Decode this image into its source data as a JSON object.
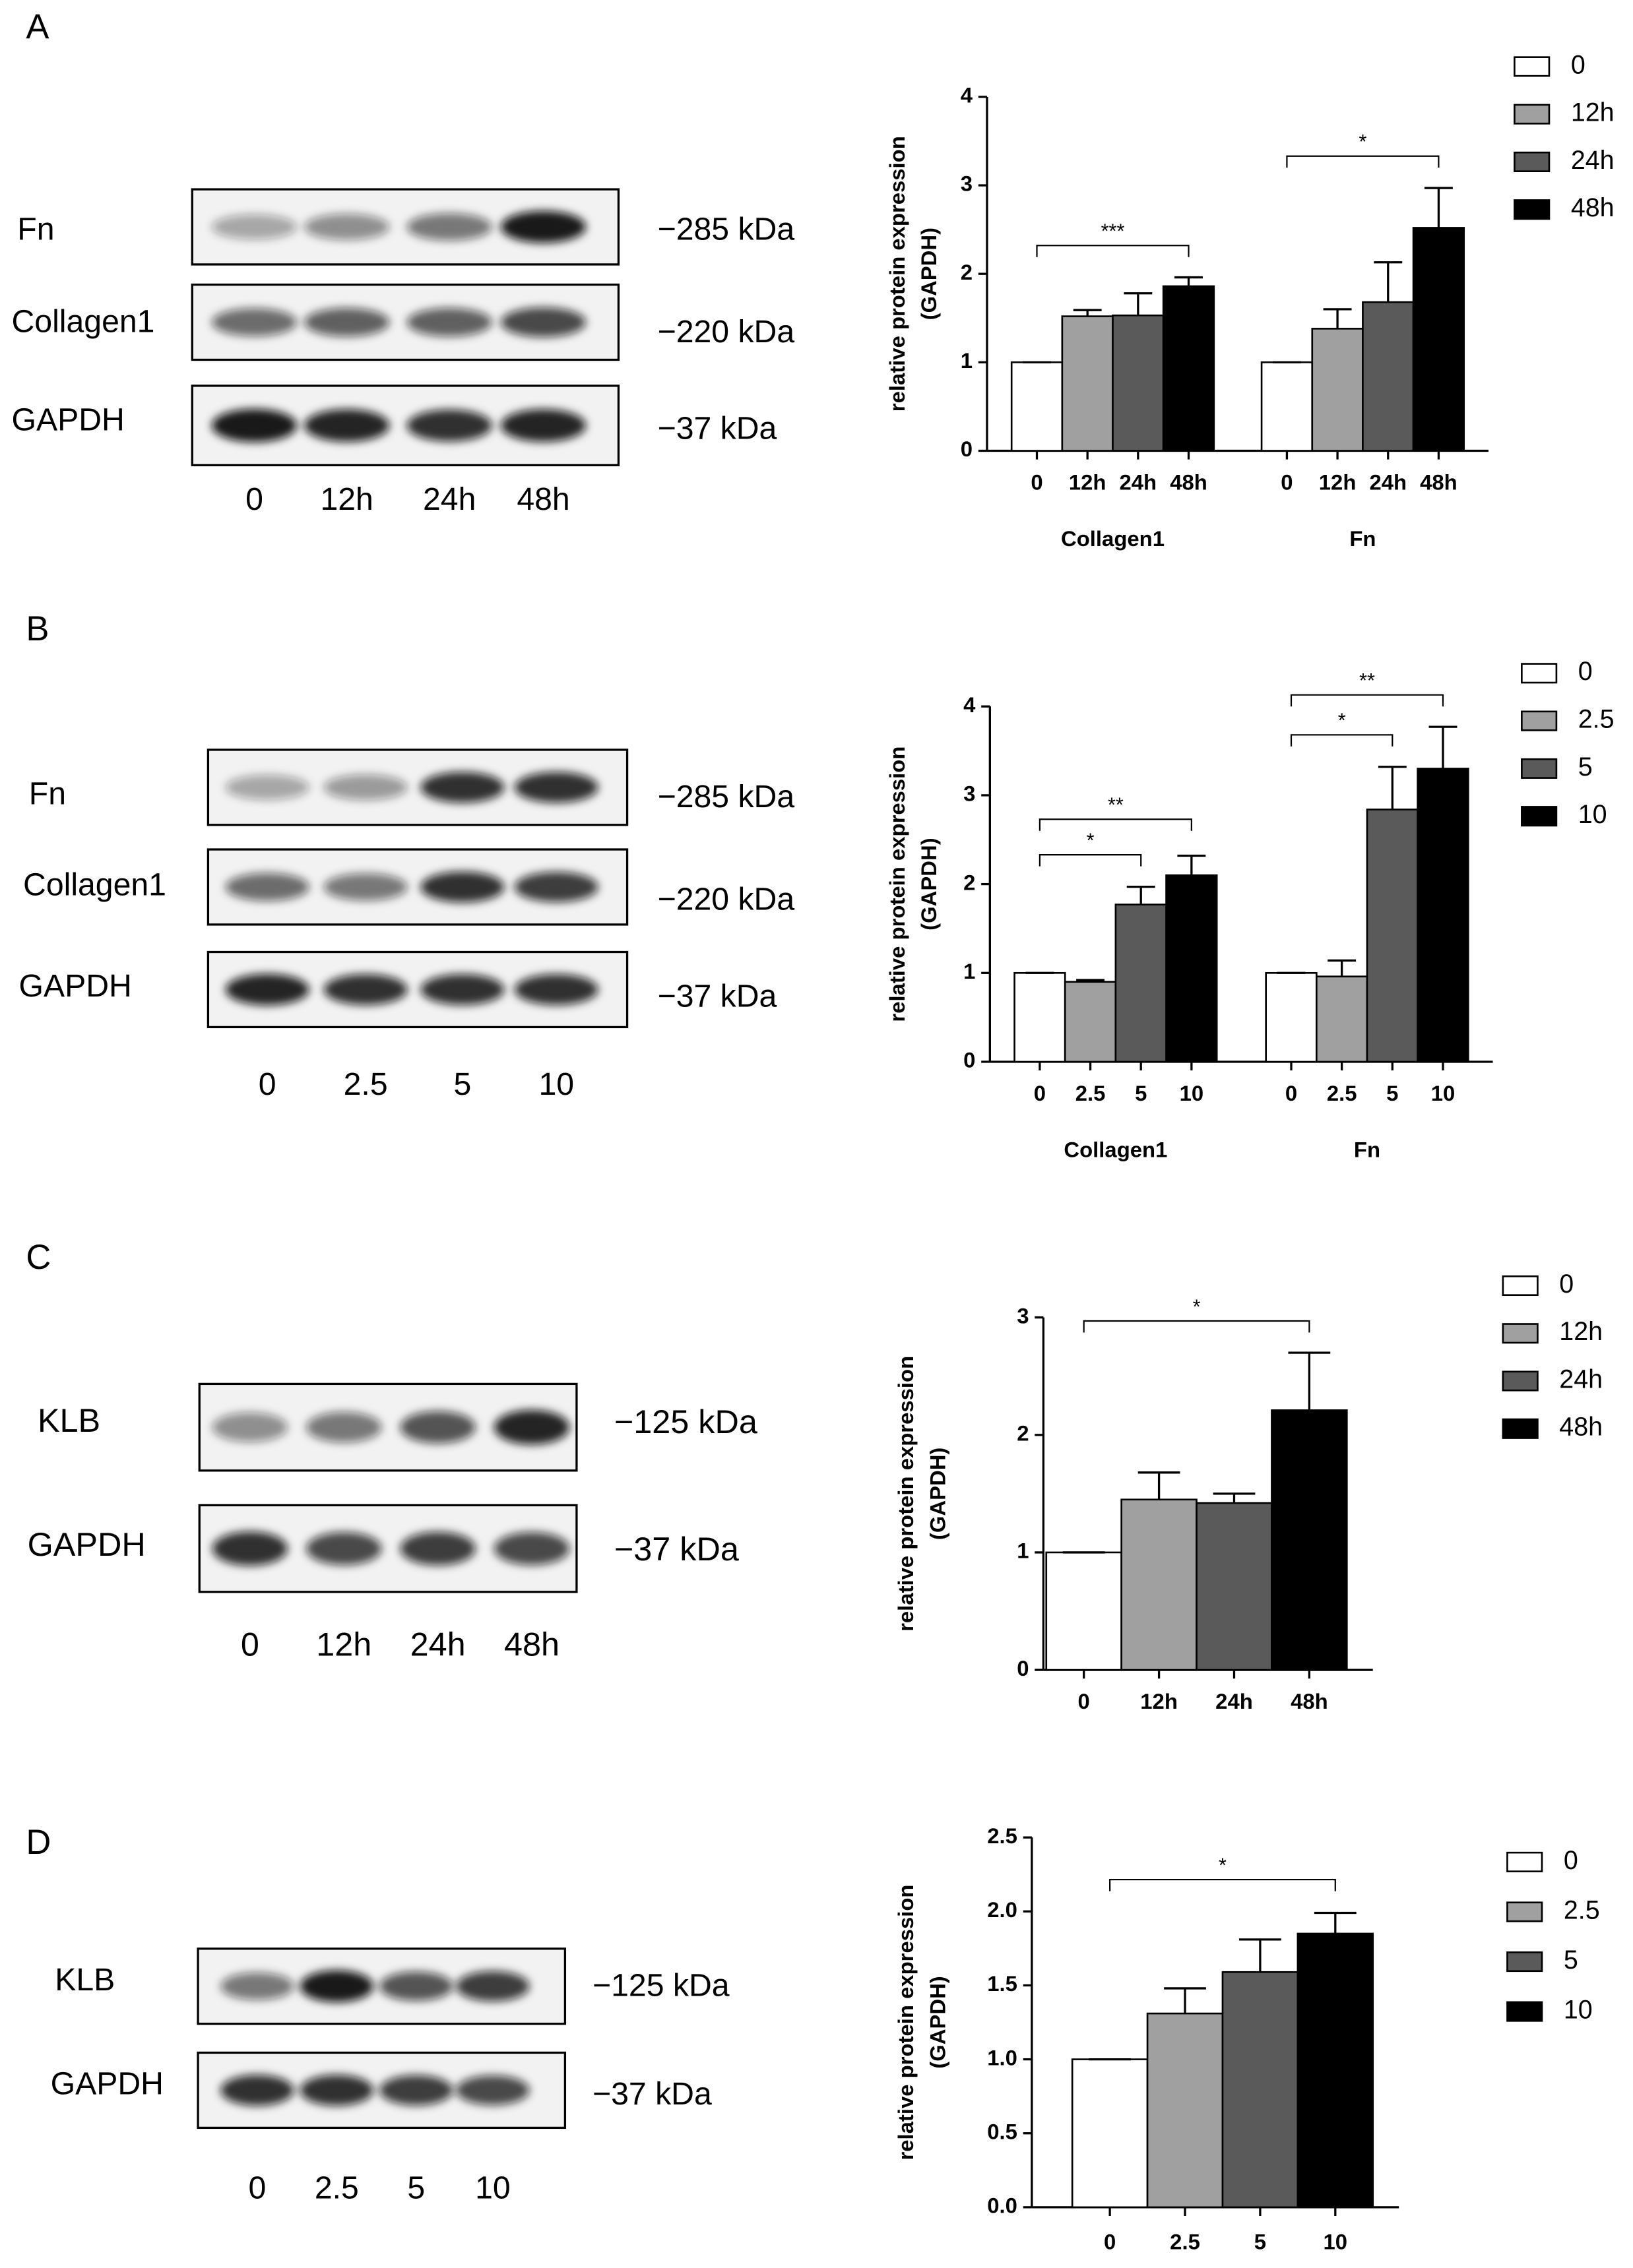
{
  "blots": [
    {
      "label": "A",
      "rows": [
        {
          "name": "Fn",
          "marker": "−285 kDa"
        },
        {
          "name": "Collagen1",
          "marker": "−220 kDa"
        },
        {
          "name": "GAPDH",
          "marker": "−37 kDa"
        }
      ],
      "lanes": [
        "0",
        "12h",
        "24h",
        "48h"
      ]
    },
    {
      "label": "B",
      "rows": [
        {
          "name": "Fn",
          "marker": "−285 kDa"
        },
        {
          "name": "Collagen1",
          "marker": "−220 kDa"
        },
        {
          "name": "GAPDH",
          "marker": "−37 kDa"
        }
      ],
      "lanes": [
        "0",
        "2.5",
        "5",
        "10"
      ]
    },
    {
      "label": "C",
      "rows": [
        {
          "name": "KLB",
          "marker": "−125 kDa"
        },
        {
          "name": "GAPDH",
          "marker": "−37 kDa"
        }
      ],
      "lanes": [
        "0",
        "12h",
        "24h",
        "48h"
      ]
    },
    {
      "label": "D",
      "rows": [
        {
          "name": "KLB",
          "marker": "−125 kDa"
        },
        {
          "name": "GAPDH",
          "marker": "−37 kDa"
        }
      ],
      "lanes": [
        "0",
        "2.5",
        "5",
        "10"
      ]
    }
  ],
  "chart_data": [
    {
      "type": "bar",
      "ylabel": [
        "relative protein expression",
        "(GAPDH)"
      ],
      "categories": [
        "Collagen1",
        "Fn"
      ],
      "series": [
        {
          "name": "0",
          "color": "#ffffff",
          "values": [
            1,
            1
          ],
          "errors": [
            0,
            0
          ]
        },
        {
          "name": "12h",
          "color": "#a0a0a0",
          "values": [
            1.52,
            1.38
          ],
          "errors": [
            0.07,
            0.22
          ]
        },
        {
          "name": "24h",
          "color": "#5a5a5a",
          "values": [
            1.53,
            1.68
          ],
          "errors": [
            0.25,
            0.45
          ]
        },
        {
          "name": "48h",
          "color": "#000000",
          "values": [
            1.86,
            2.52
          ],
          "errors": [
            0.1,
            0.45
          ]
        }
      ],
      "ylim": [
        0,
        4
      ],
      "yticks": [
        0,
        1,
        2,
        3,
        4
      ],
      "legend": "right",
      "annotations": [
        {
          "category": 0,
          "from": 0,
          "to": 3,
          "label": "***"
        },
        {
          "category": 1,
          "from": 0,
          "to": 3,
          "label": "*"
        }
      ]
    },
    {
      "type": "bar",
      "ylabel": [
        "relative protein expression",
        "(GAPDH)"
      ],
      "categories": [
        "Collagen1",
        "Fn"
      ],
      "series": [
        {
          "name": "0",
          "color": "#ffffff",
          "values": [
            1,
            1
          ],
          "errors": [
            0,
            0
          ]
        },
        {
          "name": "2.5",
          "color": "#a0a0a0",
          "values": [
            0.9,
            0.96
          ],
          "errors": [
            0.02,
            0.18
          ]
        },
        {
          "name": "5",
          "color": "#5a5a5a",
          "values": [
            1.77,
            2.84
          ],
          "errors": [
            0.2,
            0.48
          ]
        },
        {
          "name": "10",
          "color": "#000000",
          "values": [
            2.1,
            3.3
          ],
          "errors": [
            0.22,
            0.47
          ]
        }
      ],
      "ylim": [
        0,
        4
      ],
      "yticks": [
        0,
        1,
        2,
        3,
        4
      ],
      "legend": "right",
      "annotations": [
        {
          "category": 0,
          "from": 0,
          "to": 2,
          "label": "*"
        },
        {
          "category": 0,
          "from": 0,
          "to": 3,
          "label": "**"
        },
        {
          "category": 1,
          "from": 0,
          "to": 2,
          "label": "*"
        },
        {
          "category": 1,
          "from": 0,
          "to": 3,
          "label": "**"
        }
      ]
    },
    {
      "type": "bar",
      "ylabel": [
        "relative protein expression",
        "(GAPDH)"
      ],
      "categories": [
        null
      ],
      "series": [
        {
          "name": "0",
          "color": "#ffffff",
          "values": [
            1
          ],
          "errors": [
            0
          ]
        },
        {
          "name": "12h",
          "color": "#a0a0a0",
          "values": [
            1.45
          ],
          "errors": [
            0.23
          ]
        },
        {
          "name": "24h",
          "color": "#5a5a5a",
          "values": [
            1.42
          ],
          "errors": [
            0.08
          ]
        },
        {
          "name": "48h",
          "color": "#000000",
          "values": [
            2.21
          ],
          "errors": [
            0.49
          ]
        }
      ],
      "ylim": [
        0,
        3
      ],
      "yticks": [
        0,
        1,
        2,
        3
      ],
      "legend": "right",
      "annotations": [
        {
          "category": 0,
          "from": 0,
          "to": 3,
          "label": "*"
        }
      ]
    },
    {
      "type": "bar",
      "ylabel": [
        "relative protein expression",
        "(GAPDH)"
      ],
      "categories": [
        null
      ],
      "series": [
        {
          "name": "0",
          "color": "#ffffff",
          "values": [
            1
          ],
          "errors": [
            0
          ]
        },
        {
          "name": "2.5",
          "color": "#a0a0a0",
          "values": [
            1.31
          ],
          "errors": [
            0.17
          ]
        },
        {
          "name": "5",
          "color": "#5a5a5a",
          "values": [
            1.59
          ],
          "errors": [
            0.22
          ]
        },
        {
          "name": "10",
          "color": "#000000",
          "values": [
            1.85
          ],
          "errors": [
            0.14
          ]
        }
      ],
      "ylim": [
        0,
        2.5
      ],
      "yticks": [
        {
          "value": 0,
          "label": "0.0"
        },
        0.5,
        {
          "value": 1,
          "label": "1.0"
        },
        1.5,
        {
          "value": 2,
          "label": "2.0"
        },
        2.5
      ],
      "legend": "right",
      "annotations": [
        {
          "category": 0,
          "from": 0,
          "to": 3,
          "label": "*"
        }
      ]
    }
  ]
}
